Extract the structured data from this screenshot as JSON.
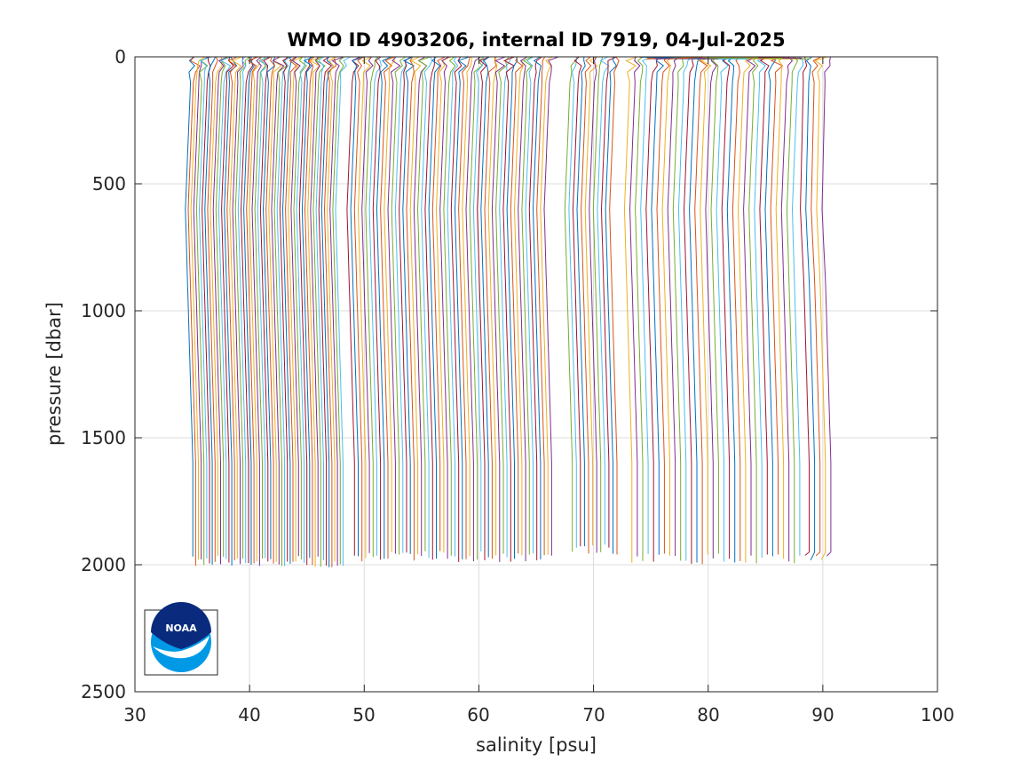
{
  "chart_data": {
    "type": "line",
    "title": "WMO ID 4903206, internal ID 7919, 04-Jul-2025",
    "xlabel": "salinity [psu]",
    "ylabel": "pressure [dbar]",
    "xlim": [
      30,
      100
    ],
    "ylim": [
      0,
      2500
    ],
    "y_reversed": true,
    "grid": true,
    "legend": "none",
    "x_ticks": [
      "30",
      "40",
      "50",
      "60",
      "70",
      "80",
      "90",
      "100"
    ],
    "y_ticks": [
      "0",
      "500",
      "1000",
      "1500",
      "2000",
      "2500"
    ],
    "description": "Waterfall of salinity profiles; each successive profile is offset in salinity. Profiles span 0 to ~2000 dbar.",
    "series_colors": [
      "#0072bd",
      "#d95319",
      "#edb120",
      "#7e2f8e",
      "#77ac30",
      "#4dbeee",
      "#a2142f"
    ],
    "groups": [
      {
        "count": 55,
        "start_base": 34.7,
        "end_base": 47.8,
        "max_pressure": 2010
      },
      {
        "count": 54,
        "start_base": 48.8,
        "end_base": 66.0,
        "max_pressure": 1990
      },
      {
        "count": 12,
        "start_base": 67.8,
        "end_base": 71.7,
        "max_pressure": 1960
      },
      {
        "count": 37,
        "start_base": 73.0,
        "end_base": 90.0,
        "max_pressure": 2000
      }
    ],
    "logo": "NOAA"
  }
}
